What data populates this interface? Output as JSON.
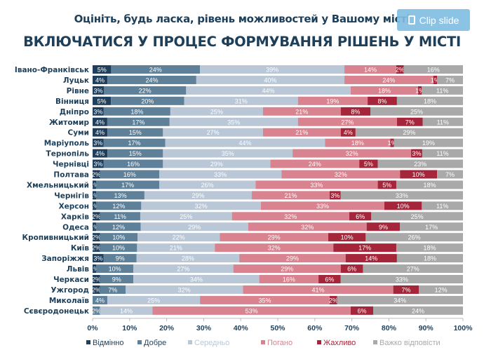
{
  "clip_button": {
    "label": "Clip slide",
    "icon": "clip-icon"
  },
  "chart_data": {
    "type": "bar",
    "orientation": "horizontal",
    "stacked": true,
    "subtitle": "Оцініть, будь ласка, рівень можливостей у Вашому місті",
    "title": "ВКЛЮЧАТИСЯ У ПРОЦЕС ФОРМУВАННЯ РІШЕНЬ У МІСТІ",
    "xlim": [
      0,
      100
    ],
    "x_ticks": [
      "0%",
      "10%",
      "20%",
      "30%",
      "40%",
      "50%",
      "60%",
      "70%",
      "80%",
      "90%",
      "100%"
    ],
    "legend_position": "bottom",
    "categories": [
      "Івано-Франківськ",
      "Луцьк",
      "Рівне",
      "Вінниця",
      "Дніпро",
      "Житомир",
      "Суми",
      "Маріуполь",
      "Тернопіль",
      "Чернівці",
      "Полтава",
      "Хмельницький",
      "Чернігів",
      "Херсон",
      "Харків",
      "Одеса",
      "Кропивницький",
      "Київ",
      "Запоріжжя",
      "Львів",
      "Черкаси",
      "Ужгород",
      "Миколаїв",
      "Сєвєродонецьк"
    ],
    "series": [
      {
        "name": "Відмінно",
        "color": "#1f3f5c",
        "values": [
          5,
          4,
          3,
          5,
          3,
          4,
          4,
          3,
          4,
          3,
          2,
          1,
          1,
          1,
          2,
          1,
          2,
          2,
          3,
          1,
          2,
          2,
          0,
          0
        ]
      },
      {
        "name": "Добре",
        "color": "#5f8099",
        "values": [
          24,
          24,
          22,
          20,
          18,
          17,
          15,
          17,
          15,
          16,
          16,
          17,
          13,
          12,
          11,
          12,
          10,
          10,
          9,
          10,
          9,
          7,
          4,
          2
        ]
      },
      {
        "name": "Середньо",
        "color": "#b9c7d7",
        "values": [
          39,
          40,
          44,
          31,
          25,
          35,
          27,
          44,
          35,
          29,
          33,
          26,
          29,
          32,
          25,
          29,
          22,
          21,
          28,
          27,
          34,
          32,
          25,
          14
        ]
      },
      {
        "name": "Погано",
        "color": "#d8838f",
        "values": [
          14,
          24,
          18,
          19,
          21,
          27,
          21,
          18,
          32,
          24,
          32,
          33,
          21,
          33,
          32,
          32,
          29,
          32,
          29,
          29,
          16,
          41,
          35,
          53
        ]
      },
      {
        "name": "Жахливо",
        "color": "#a5263a",
        "values": [
          2,
          1,
          1,
          8,
          8,
          7,
          4,
          1,
          3,
          5,
          10,
          5,
          3,
          10,
          6,
          9,
          10,
          17,
          14,
          6,
          6,
          7,
          2,
          6
        ]
      },
      {
        "name": "Важко відповісти",
        "color": "#a9a9a9",
        "values": [
          16,
          7,
          11,
          18,
          25,
          11,
          29,
          19,
          11,
          23,
          7,
          18,
          33,
          11,
          25,
          17,
          26,
          18,
          18,
          27,
          33,
          12,
          34,
          24
        ]
      }
    ]
  }
}
